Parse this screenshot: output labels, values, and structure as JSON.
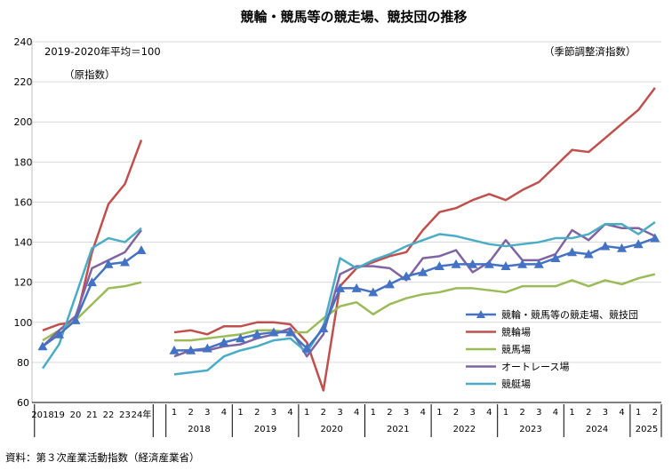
{
  "chart_data": {
    "type": "line",
    "title": "競輪・競馬等の競走場、競技団の推移",
    "base_note": "2019-2020年平均＝100",
    "index_note_left": "（原指数）",
    "index_note_right": "（季節調整済指数）",
    "source": "資料：第３次産業活動指数（経済産業省）",
    "ylim": [
      60,
      240
    ],
    "yticks": [
      "60",
      "80",
      "100",
      "120",
      "140",
      "160",
      "180",
      "200",
      "220",
      "240"
    ],
    "annual": {
      "x_labels": [
        "2018",
        "19",
        "20",
        "21",
        "22",
        "23",
        "24年"
      ],
      "series": [
        {
          "name": "競輪・競馬等の競走場、競技団",
          "color": "#4472c4",
          "marker": "triangle",
          "values": [
            88,
            94,
            101,
            120,
            129,
            130,
            136
          ]
        },
        {
          "name": "競輪場",
          "color": "#c0504d",
          "values": [
            96,
            99,
            100,
            135,
            159,
            169,
            191
          ]
        },
        {
          "name": "競馬場",
          "color": "#9bbb59",
          "values": [
            91,
            96,
            101,
            109,
            117,
            118,
            120
          ]
        },
        {
          "name": "オートレース場",
          "color": "#8064a2",
          "values": [
            88,
            96,
            103,
            127,
            131,
            135,
            146
          ]
        },
        {
          "name": "競艇場",
          "color": "#4bacc6",
          "values": [
            77,
            89,
            113,
            137,
            142,
            140,
            147
          ]
        }
      ]
    },
    "quarterly": {
      "quarter_labels": [
        "1",
        "2",
        "3",
        "4",
        "1",
        "2",
        "3",
        "4",
        "1",
        "2",
        "3",
        "4",
        "1",
        "2",
        "3",
        "4",
        "1",
        "2",
        "3",
        "4",
        "1",
        "2",
        "3",
        "4",
        "1",
        "2",
        "3",
        "4",
        "1",
        "2"
      ],
      "year_labels": [
        "2018",
        "2019",
        "2020",
        "2021",
        "2022",
        "2023",
        "2024",
        "2025"
      ],
      "series": [
        {
          "name": "競輪・競馬等の競走場、競技団",
          "color": "#4472c4",
          "marker": "triangle",
          "values": [
            86,
            86,
            87,
            90,
            92,
            94,
            95,
            95,
            87,
            97,
            117,
            117,
            115,
            119,
            123,
            125,
            128,
            129,
            129,
            129,
            128,
            129,
            129,
            132,
            135,
            134,
            138,
            137,
            139,
            142
          ]
        },
        {
          "name": "競輪場",
          "color": "#c0504d",
          "values": [
            95,
            96,
            94,
            98,
            98,
            100,
            100,
            99,
            90,
            66,
            118,
            127,
            130,
            133,
            135,
            146,
            155,
            157,
            161,
            164,
            161,
            166,
            170,
            178,
            186,
            185,
            192,
            199,
            206,
            217
          ]
        },
        {
          "name": "競馬場",
          "color": "#9bbb59",
          "values": [
            91,
            91,
            92,
            93,
            94,
            96,
            96,
            95,
            95,
            102,
            108,
            110,
            104,
            109,
            112,
            114,
            115,
            117,
            117,
            116,
            115,
            118,
            118,
            118,
            121,
            118,
            121,
            119,
            122,
            124
          ]
        },
        {
          "name": "オートレース場",
          "color": "#8064a2",
          "values": [
            83,
            86,
            86,
            88,
            89,
            92,
            94,
            97,
            83,
            94,
            124,
            128,
            128,
            127,
            121,
            132,
            133,
            136,
            125,
            130,
            141,
            131,
            131,
            134,
            146,
            141,
            149,
            147,
            147,
            143
          ]
        },
        {
          "name": "競艇場",
          "color": "#4bacc6",
          "values": [
            74,
            75,
            76,
            83,
            86,
            88,
            91,
            92,
            85,
            98,
            132,
            127,
            131,
            134,
            138,
            141,
            144,
            143,
            141,
            139,
            138,
            139,
            140,
            142,
            142,
            144,
            149,
            149,
            144,
            150
          ]
        }
      ]
    },
    "legend": [
      {
        "name": "競輪・競馬等の競走場、競技団",
        "color": "#4472c4",
        "marker": "triangle"
      },
      {
        "name": "競輪場",
        "color": "#c0504d"
      },
      {
        "name": "競馬場",
        "color": "#9bbb59"
      },
      {
        "name": "オートレース場",
        "color": "#8064a2"
      },
      {
        "name": "競艇場",
        "color": "#4bacc6"
      }
    ]
  }
}
